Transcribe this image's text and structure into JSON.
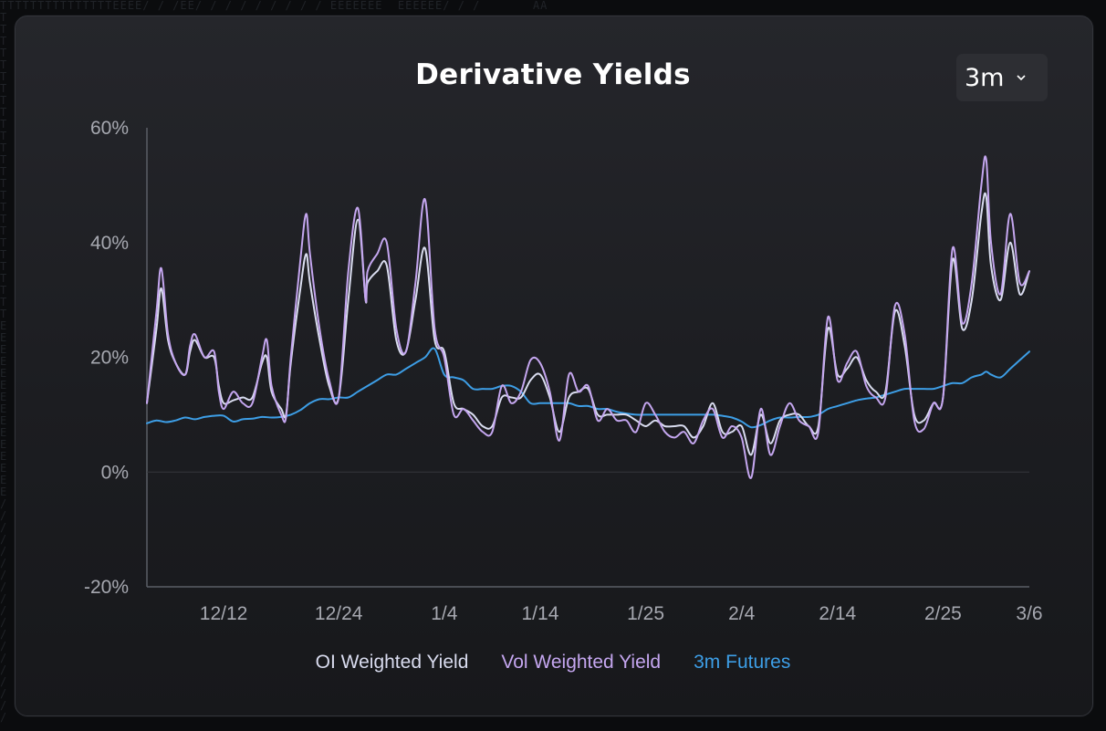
{
  "header": {
    "title": "Derivative Yields",
    "range_selected": "3m"
  },
  "colors": {
    "oi": "#d9dcef",
    "vol": "#c4a6ef",
    "futures": "#3d9ee6",
    "axis": "#5b5e66",
    "zero_grid": "#34363c"
  },
  "chart_data": {
    "type": "line",
    "title": "Derivative Yields",
    "xlabel": "",
    "ylabel": "",
    "ylim": [
      -20,
      60
    ],
    "y_ticks": [
      "60%",
      "40%",
      "20%",
      "0%",
      "-20%"
    ],
    "y_tick_values": [
      60,
      40,
      20,
      0,
      -20
    ],
    "x_tick_labels": [
      "12/12",
      "12/24",
      "1/4",
      "1/14",
      "1/25",
      "2/4",
      "2/14",
      "2/25",
      "3/6"
    ],
    "x_tick_days": [
      8,
      20,
      31,
      41,
      52,
      62,
      72,
      83,
      92
    ],
    "x_range_days": [
      0,
      92
    ],
    "grid": "zero-line only",
    "legend_position": "bottom-center",
    "series": [
      {
        "name": "OI Weighted Yield",
        "points": [
          [
            0,
            12
          ],
          [
            1,
            25
          ],
          [
            1.5,
            32
          ],
          [
            2.2,
            23
          ],
          [
            3,
            19
          ],
          [
            4,
            17
          ],
          [
            4.5,
            21
          ],
          [
            5,
            23
          ],
          [
            6,
            20
          ],
          [
            7,
            20
          ],
          [
            7.5,
            15
          ],
          [
            8,
            12
          ],
          [
            9,
            12.5
          ],
          [
            10,
            13
          ],
          [
            11,
            13
          ],
          [
            12,
            19
          ],
          [
            12.5,
            20
          ],
          [
            13,
            14
          ],
          [
            14,
            11
          ],
          [
            14.5,
            10
          ],
          [
            15,
            19
          ],
          [
            16,
            32
          ],
          [
            16.6,
            38
          ],
          [
            17,
            33
          ],
          [
            18,
            23
          ],
          [
            19,
            15
          ],
          [
            20,
            13
          ],
          [
            21,
            30
          ],
          [
            22,
            44
          ],
          [
            22.8,
            30
          ],
          [
            23,
            33
          ],
          [
            24,
            35
          ],
          [
            25,
            36
          ],
          [
            26,
            23
          ],
          [
            27,
            21
          ],
          [
            28,
            30
          ],
          [
            29,
            39
          ],
          [
            30,
            23
          ],
          [
            31,
            21
          ],
          [
            32,
            12
          ],
          [
            33,
            11
          ],
          [
            34,
            10
          ],
          [
            35,
            8
          ],
          [
            36,
            8
          ],
          [
            37,
            13
          ],
          [
            38,
            13
          ],
          [
            39,
            13
          ],
          [
            40,
            16
          ],
          [
            41,
            17
          ],
          [
            42,
            13
          ],
          [
            43,
            7
          ],
          [
            44,
            13
          ],
          [
            45,
            14
          ],
          [
            46,
            14.5
          ],
          [
            47,
            10
          ],
          [
            48,
            10
          ],
          [
            49,
            10
          ],
          [
            50,
            10
          ],
          [
            51,
            9
          ],
          [
            52,
            8
          ],
          [
            53,
            9
          ],
          [
            54,
            8
          ],
          [
            55,
            8
          ],
          [
            56,
            8
          ],
          [
            57,
            6
          ],
          [
            58,
            8
          ],
          [
            59,
            12
          ],
          [
            60,
            7
          ],
          [
            61,
            7
          ],
          [
            62,
            8
          ],
          [
            63,
            3
          ],
          [
            64,
            10
          ],
          [
            65,
            5
          ],
          [
            66,
            9
          ],
          [
            67,
            10
          ],
          [
            68,
            10
          ],
          [
            69,
            8
          ],
          [
            70,
            8
          ],
          [
            71,
            25
          ],
          [
            72,
            17
          ],
          [
            73,
            18
          ],
          [
            74,
            20
          ],
          [
            75,
            16
          ],
          [
            76,
            14
          ],
          [
            77,
            14
          ],
          [
            78,
            28
          ],
          [
            79,
            22
          ],
          [
            80,
            10
          ],
          [
            81,
            9
          ],
          [
            82,
            12
          ],
          [
            83,
            13
          ],
          [
            84,
            37
          ],
          [
            85,
            25
          ],
          [
            86,
            30
          ],
          [
            87,
            45
          ],
          [
            87.5,
            48
          ],
          [
            88,
            36
          ],
          [
            89,
            30
          ],
          [
            90,
            40
          ],
          [
            91,
            31
          ],
          [
            92,
            35
          ]
        ]
      },
      {
        "name": "Vol Weighted Yield",
        "points": [
          [
            0,
            12
          ],
          [
            1,
            28
          ],
          [
            1.5,
            35.5
          ],
          [
            2.2,
            24
          ],
          [
            3,
            19
          ],
          [
            4,
            17
          ],
          [
            4.5,
            22
          ],
          [
            5,
            24
          ],
          [
            6,
            20
          ],
          [
            7,
            21
          ],
          [
            7.5,
            14
          ],
          [
            8,
            11
          ],
          [
            9,
            14
          ],
          [
            10,
            12
          ],
          [
            11,
            12
          ],
          [
            12,
            20
          ],
          [
            12.5,
            23
          ],
          [
            13,
            15
          ],
          [
            14,
            10
          ],
          [
            14.5,
            9.5
          ],
          [
            15,
            20
          ],
          [
            16,
            37
          ],
          [
            16.6,
            45
          ],
          [
            17,
            38
          ],
          [
            18,
            25
          ],
          [
            19,
            16
          ],
          [
            20,
            13
          ],
          [
            21,
            35
          ],
          [
            22,
            46
          ],
          [
            22.8,
            30
          ],
          [
            23,
            35
          ],
          [
            24,
            38
          ],
          [
            25,
            40
          ],
          [
            26,
            25
          ],
          [
            27,
            21
          ],
          [
            28,
            33
          ],
          [
            29,
            47.5
          ],
          [
            30,
            25
          ],
          [
            31,
            20
          ],
          [
            32,
            10
          ],
          [
            33,
            11
          ],
          [
            34,
            9
          ],
          [
            35,
            7
          ],
          [
            36,
            7
          ],
          [
            37,
            15
          ],
          [
            38,
            12
          ],
          [
            39,
            14
          ],
          [
            40,
            19.5
          ],
          [
            41,
            19
          ],
          [
            42,
            14
          ],
          [
            43,
            5.5
          ],
          [
            44,
            17
          ],
          [
            45,
            14
          ],
          [
            46,
            15
          ],
          [
            47,
            9
          ],
          [
            48,
            11
          ],
          [
            49,
            9
          ],
          [
            50,
            9
          ],
          [
            51,
            7
          ],
          [
            52,
            12
          ],
          [
            53,
            10
          ],
          [
            54,
            7
          ],
          [
            55,
            6
          ],
          [
            56,
            7
          ],
          [
            57,
            5
          ],
          [
            58,
            9
          ],
          [
            59,
            11
          ],
          [
            60,
            6
          ],
          [
            61,
            8
          ],
          [
            62,
            6
          ],
          [
            63,
            -1
          ],
          [
            64,
            11
          ],
          [
            65,
            3
          ],
          [
            66,
            8
          ],
          [
            67,
            12
          ],
          [
            68,
            9
          ],
          [
            69,
            8
          ],
          [
            70,
            7
          ],
          [
            71,
            27
          ],
          [
            72,
            16
          ],
          [
            73,
            19
          ],
          [
            74,
            21
          ],
          [
            75,
            15
          ],
          [
            76,
            13
          ],
          [
            77,
            13
          ],
          [
            78,
            29
          ],
          [
            79,
            24
          ],
          [
            80,
            9
          ],
          [
            81,
            7.5
          ],
          [
            82,
            12
          ],
          [
            83,
            13
          ],
          [
            84,
            39
          ],
          [
            85,
            26
          ],
          [
            86,
            33
          ],
          [
            87,
            50
          ],
          [
            87.5,
            54.5
          ],
          [
            88,
            40
          ],
          [
            89,
            31
          ],
          [
            90,
            45
          ],
          [
            91,
            33
          ],
          [
            92,
            35
          ]
        ]
      },
      {
        "name": "3m Futures",
        "points": [
          [
            0,
            8.5
          ],
          [
            1,
            9
          ],
          [
            2,
            8.7
          ],
          [
            3,
            9
          ],
          [
            4,
            9.5
          ],
          [
            5,
            9.2
          ],
          [
            6,
            9.6
          ],
          [
            7,
            9.8
          ],
          [
            8,
            9.8
          ],
          [
            9,
            8.8
          ],
          [
            10,
            9.2
          ],
          [
            11,
            9.3
          ],
          [
            12,
            9.6
          ],
          [
            13,
            9.5
          ],
          [
            14,
            9.6
          ],
          [
            15,
            10
          ],
          [
            16,
            10.8
          ],
          [
            17,
            12
          ],
          [
            18,
            12.7
          ],
          [
            19,
            12.7
          ],
          [
            20,
            13
          ],
          [
            21,
            13
          ],
          [
            22,
            14
          ],
          [
            23,
            15
          ],
          [
            24,
            16
          ],
          [
            25,
            17
          ],
          [
            26,
            17
          ],
          [
            27,
            18
          ],
          [
            28,
            19
          ],
          [
            29,
            20
          ],
          [
            30,
            21.5
          ],
          [
            31,
            17
          ],
          [
            32,
            16.5
          ],
          [
            33,
            16
          ],
          [
            34,
            14.5
          ],
          [
            35,
            14.5
          ],
          [
            36,
            14.5
          ],
          [
            37,
            15
          ],
          [
            38,
            15
          ],
          [
            39,
            14
          ],
          [
            40,
            12
          ],
          [
            41,
            12
          ],
          [
            42,
            12
          ],
          [
            43,
            12
          ],
          [
            44,
            12
          ],
          [
            45,
            11.5
          ],
          [
            46,
            11.5
          ],
          [
            47,
            11
          ],
          [
            48,
            11
          ],
          [
            49,
            10.5
          ],
          [
            50,
            10.2
          ],
          [
            51,
            10
          ],
          [
            52,
            10
          ],
          [
            53,
            10
          ],
          [
            54,
            10
          ],
          [
            55,
            10
          ],
          [
            56,
            10
          ],
          [
            57,
            10
          ],
          [
            58,
            10
          ],
          [
            59,
            10
          ],
          [
            60,
            9.8
          ],
          [
            61,
            9.5
          ],
          [
            62,
            8.8
          ],
          [
            63,
            7.8
          ],
          [
            64,
            8.2
          ],
          [
            65,
            9
          ],
          [
            66,
            9.5
          ],
          [
            67,
            9.5
          ],
          [
            68,
            9.6
          ],
          [
            69,
            9.6
          ],
          [
            70,
            10
          ],
          [
            71,
            11
          ],
          [
            72,
            11.5
          ],
          [
            73,
            12
          ],
          [
            74,
            12.5
          ],
          [
            75,
            12.8
          ],
          [
            76,
            13
          ],
          [
            77,
            13.5
          ],
          [
            78,
            14
          ],
          [
            79,
            14.5
          ],
          [
            80,
            14.5
          ],
          [
            81,
            14.5
          ],
          [
            82,
            14.5
          ],
          [
            83,
            15
          ],
          [
            84,
            15.5
          ],
          [
            85,
            15.5
          ],
          [
            86,
            16.5
          ],
          [
            87,
            17
          ],
          [
            87.5,
            17.5
          ],
          [
            88,
            17
          ],
          [
            89,
            16.5
          ],
          [
            90,
            18
          ],
          [
            91,
            19.5
          ],
          [
            92,
            21
          ]
        ]
      }
    ]
  }
}
